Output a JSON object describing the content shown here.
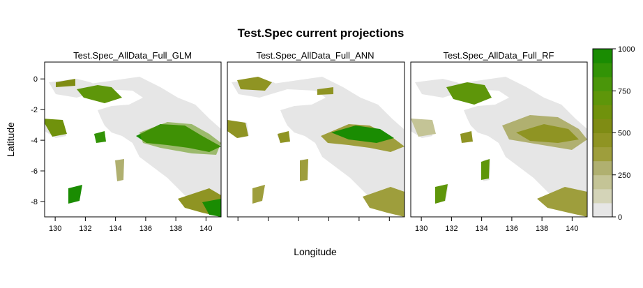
{
  "title": "Test.Spec current projections",
  "chart_data": {
    "type": "heatmap",
    "title": "Test.Spec current projections",
    "xlabel": "Longitude",
    "ylabel": "Latitude",
    "xlim": [
      129.3,
      141.0
    ],
    "ylim": [
      -9.0,
      1.1
    ],
    "x_ticks": [
      130,
      132,
      134,
      136,
      138,
      140
    ],
    "y_ticks": [
      0,
      -2,
      -4,
      -6,
      -8
    ],
    "panels": [
      {
        "name": "Test.Spec_AllData_Full_GLM",
        "x_tick_labels": true
      },
      {
        "name": "Test.Spec_AllData_Full_ANN",
        "x_tick_labels": false
      },
      {
        "name": "Test.Spec_AllData_Full_RF",
        "x_tick_labels": true
      }
    ],
    "colorbar": {
      "range": [
        0,
        1000
      ],
      "ticks": [
        0,
        250,
        500,
        750,
        1000
      ],
      "colors": [
        "#e6e6e6",
        "#d4d4b8",
        "#c4c496",
        "#b0b070",
        "#9e9e3c",
        "#8f9423",
        "#7f8c14",
        "#70920c",
        "#5e960a",
        "#4a960a",
        "#329306",
        "#1a8c02"
      ]
    }
  }
}
